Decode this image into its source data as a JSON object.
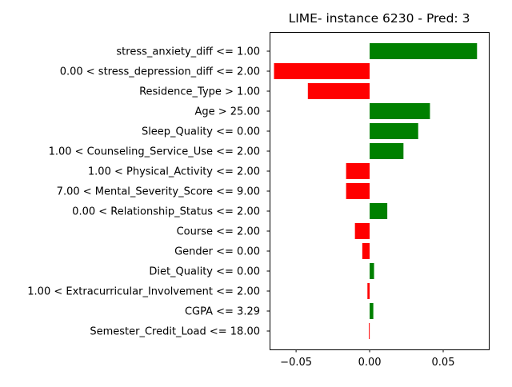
{
  "chart_data": {
    "type": "bar",
    "orientation": "horizontal",
    "title": "LIME- instance 6230 - Pred: 3",
    "xlabel": "",
    "ylabel": "",
    "xlim": [
      -0.068,
      0.081
    ],
    "xticks": [
      -0.05,
      0.0,
      0.05
    ],
    "xtick_labels": [
      "−0.05",
      "0.00",
      "0.05"
    ],
    "grid": false,
    "legend": "none",
    "colors": {
      "positive": "#008000",
      "negative": "#ff0000"
    },
    "categories": [
      "stress_anxiety_diff <= 1.00",
      "0.00 < stress_depression_diff <= 2.00",
      "Residence_Type > 1.00",
      "Age > 25.00",
      "Sleep_Quality <= 0.00",
      "1.00 < Counseling_Service_Use <= 2.00",
      "1.00 < Physical_Activity <= 2.00",
      "7.00 < Mental_Severity_Score <= 9.00",
      "0.00 < Relationship_Status <= 2.00",
      "Course <= 2.00",
      "Gender <= 0.00",
      "Diet_Quality <= 0.00",
      "1.00 < Extracurricular_Involvement <= 2.00",
      "CGPA <= 3.29",
      "Semester_Credit_Load <= 18.00"
    ],
    "values": [
      0.073,
      -0.065,
      -0.042,
      0.041,
      0.033,
      0.023,
      -0.016,
      -0.016,
      0.012,
      -0.01,
      -0.005,
      0.003,
      -0.0015,
      0.0025,
      -0.0005
    ]
  }
}
